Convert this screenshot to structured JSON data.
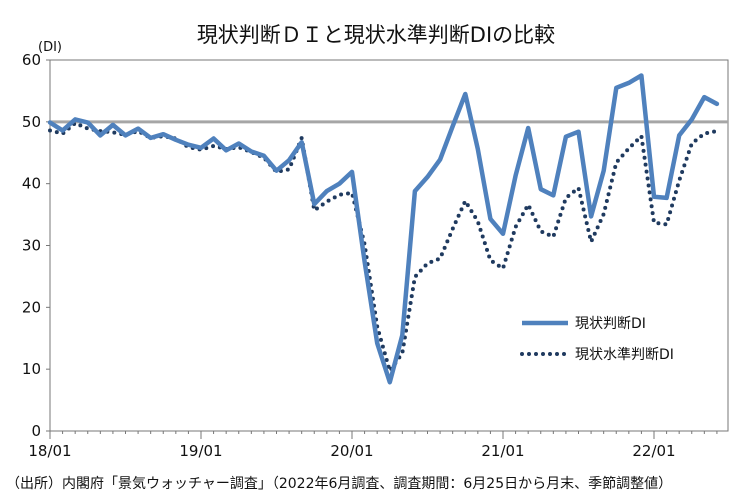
{
  "chart_data": {
    "type": "line",
    "title": "現状判断ＤＩと現状水準判断DIの比較",
    "y_unit": "(DI)",
    "ylim": [
      0,
      60
    ],
    "yticks": [
      0,
      10,
      20,
      30,
      40,
      50,
      60
    ],
    "xtick_labels": [
      "18/01",
      "19/01",
      "20/01",
      "21/01",
      "22/01"
    ],
    "reference_line": 50,
    "grid": false,
    "legend_position": "lower-right",
    "x": [
      "2018-01",
      "2018-02",
      "2018-03",
      "2018-04",
      "2018-05",
      "2018-06",
      "2018-07",
      "2018-08",
      "2018-09",
      "2018-10",
      "2018-11",
      "2018-12",
      "2019-01",
      "2019-02",
      "2019-03",
      "2019-04",
      "2019-05",
      "2019-06",
      "2019-07",
      "2019-08",
      "2019-09",
      "2019-10",
      "2019-11",
      "2019-12",
      "2020-01",
      "2020-02",
      "2020-03",
      "2020-04",
      "2020-05",
      "2020-06",
      "2020-07",
      "2020-08",
      "2020-09",
      "2020-10",
      "2020-11",
      "2020-12",
      "2021-01",
      "2021-02",
      "2021-03",
      "2021-04",
      "2021-05",
      "2021-06",
      "2021-07",
      "2021-08",
      "2021-09",
      "2021-10",
      "2021-11",
      "2021-12",
      "2022-01",
      "2022-02",
      "2022-03",
      "2022-04",
      "2022-05",
      "2022-06"
    ],
    "series": [
      {
        "name": "現状判断DI",
        "color": "#4F81BD",
        "style": "solid",
        "values": [
          49.9,
          48.6,
          50.4,
          49.9,
          47.8,
          49.5,
          47.8,
          48.9,
          47.4,
          48.0,
          47.1,
          46.3,
          45.8,
          47.3,
          45.4,
          46.5,
          45.2,
          44.5,
          42.1,
          43.8,
          46.7,
          36.7,
          38.8,
          40.0,
          41.9,
          27.4,
          14.2,
          7.9,
          15.5,
          38.8,
          41.1,
          43.9,
          49.3,
          54.5,
          45.6,
          34.3,
          31.9,
          41.3,
          49.0,
          39.1,
          38.1,
          47.6,
          48.4,
          34.7,
          42.1,
          55.5,
          56.3,
          57.5,
          37.9,
          37.7,
          47.8,
          50.4,
          54.0,
          52.9
        ]
      },
      {
        "name": "現状水準判断DI",
        "color": "#1F3A5F",
        "style": "dotted",
        "values": [
          48.6,
          48.1,
          49.8,
          48.9,
          48.5,
          48.3,
          47.9,
          48.5,
          47.4,
          47.7,
          47.3,
          45.9,
          45.5,
          46.1,
          45.6,
          45.9,
          45.1,
          44.2,
          41.9,
          42.3,
          47.4,
          35.7,
          37.1,
          38.2,
          38.5,
          30.2,
          16.9,
          9.7,
          12.6,
          24.9,
          27.1,
          27.9,
          32.7,
          37.2,
          33.9,
          27.6,
          26.3,
          33.0,
          36.6,
          32.3,
          31.4,
          37.7,
          39.3,
          30.6,
          35.1,
          43.4,
          45.7,
          47.7,
          33.7,
          33.4,
          40.5,
          46.5,
          48.1,
          48.5
        ]
      }
    ],
    "source_note": "（出所）内閣府「景気ウォッチャー調査」（2022年6月調査、調査期間：6月25日から月末、季節調整値）"
  }
}
